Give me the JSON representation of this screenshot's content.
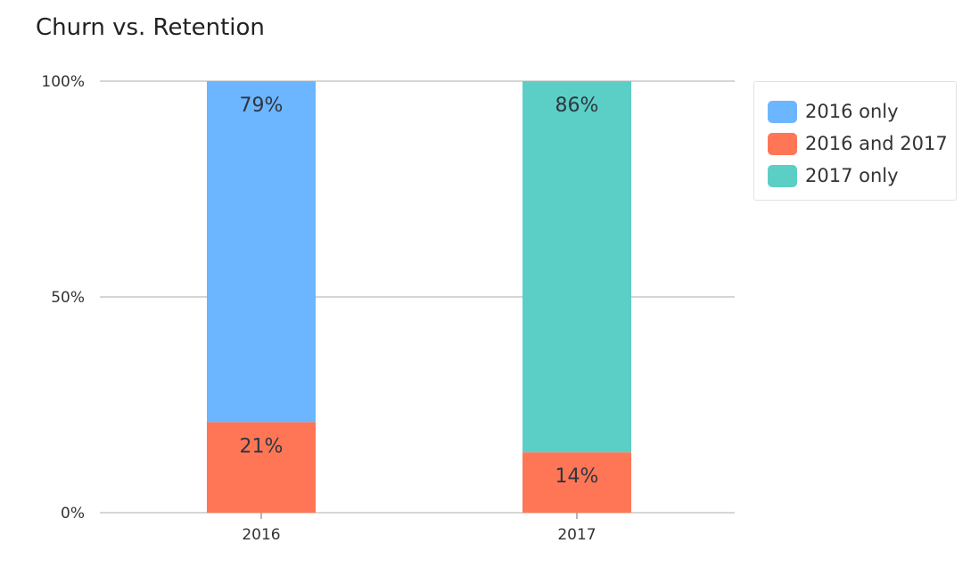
{
  "chart_data": {
    "type": "bar",
    "stacked": true,
    "title": "Churn vs. Retention",
    "xlabel": "",
    "ylabel": "",
    "categories": [
      "2016",
      "2017"
    ],
    "y_ticks": [
      "0%",
      "50%",
      "100%"
    ],
    "ylim": [
      0,
      100
    ],
    "grid": true,
    "legend_position": "top-right",
    "series": [
      {
        "name": "2016 and 2017",
        "color": "#ff7656",
        "values": [
          21,
          14
        ]
      },
      {
        "name": "2016 only",
        "color": "#6cb6ff",
        "values": [
          79,
          0
        ]
      },
      {
        "name": "2017 only",
        "color": "#5bcfc5",
        "values": [
          0,
          86
        ]
      }
    ],
    "bar_labels": [
      {
        "category": "2016",
        "series": "2016 only",
        "text": "79%"
      },
      {
        "category": "2016",
        "series": "2016 and 2017",
        "text": "21%"
      },
      {
        "category": "2017",
        "series": "2016 and 2017",
        "text": "14%"
      },
      {
        "category": "2017",
        "series": "2017 only",
        "text": "86%"
      }
    ],
    "legend_entries": [
      {
        "name": "2016 only",
        "color": "#6cb6ff"
      },
      {
        "name": "2016 and 2017",
        "color": "#ff7656"
      },
      {
        "name": "2017 only",
        "color": "#5bcfc5"
      }
    ]
  }
}
